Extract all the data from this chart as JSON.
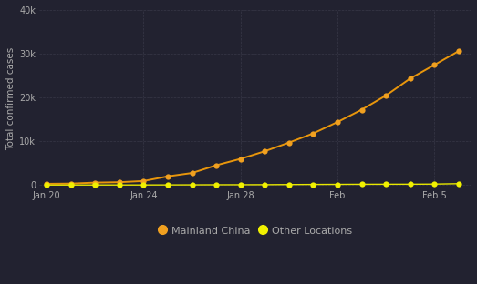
{
  "background_color": "#222230",
  "grid_color": "#3a3a4a",
  "line_color_china": "#e8960c",
  "line_color_other": "#e8e800",
  "marker_color_china": "#f0a020",
  "marker_color_other": "#f0f000",
  "ylabel": "Total confirmed cases",
  "xtick_labels": [
    "Jan 20",
    "Jan 24",
    "Jan 28",
    "Feb",
    "Feb 5"
  ],
  "xtick_positions": [
    0,
    4,
    8,
    12,
    16
  ],
  "ytick_labels": [
    "0",
    "10k",
    "20k",
    "30k",
    "40k"
  ],
  "ytick_values": [
    0,
    10000,
    20000,
    30000,
    40000
  ],
  "ylim": [
    -500,
    40000
  ],
  "xlim": [
    -0.3,
    17.5
  ],
  "legend_labels": [
    "Mainland China",
    "Other Locations"
  ],
  "china_values": [
    278,
    326,
    547,
    639,
    916,
    1979,
    2744,
    4515,
    5974,
    7711,
    9692,
    11791,
    14380,
    17205,
    20438,
    24324,
    27440,
    30587
  ],
  "other_values": [
    4,
    6,
    6,
    8,
    14,
    25,
    40,
    57,
    64,
    76,
    108,
    136,
    153,
    173,
    183,
    188,
    213,
    307
  ],
  "n_points": 18,
  "text_color": "#aaaaaa",
  "font_size_label": 7.5,
  "font_size_tick": 7,
  "font_size_legend": 8
}
